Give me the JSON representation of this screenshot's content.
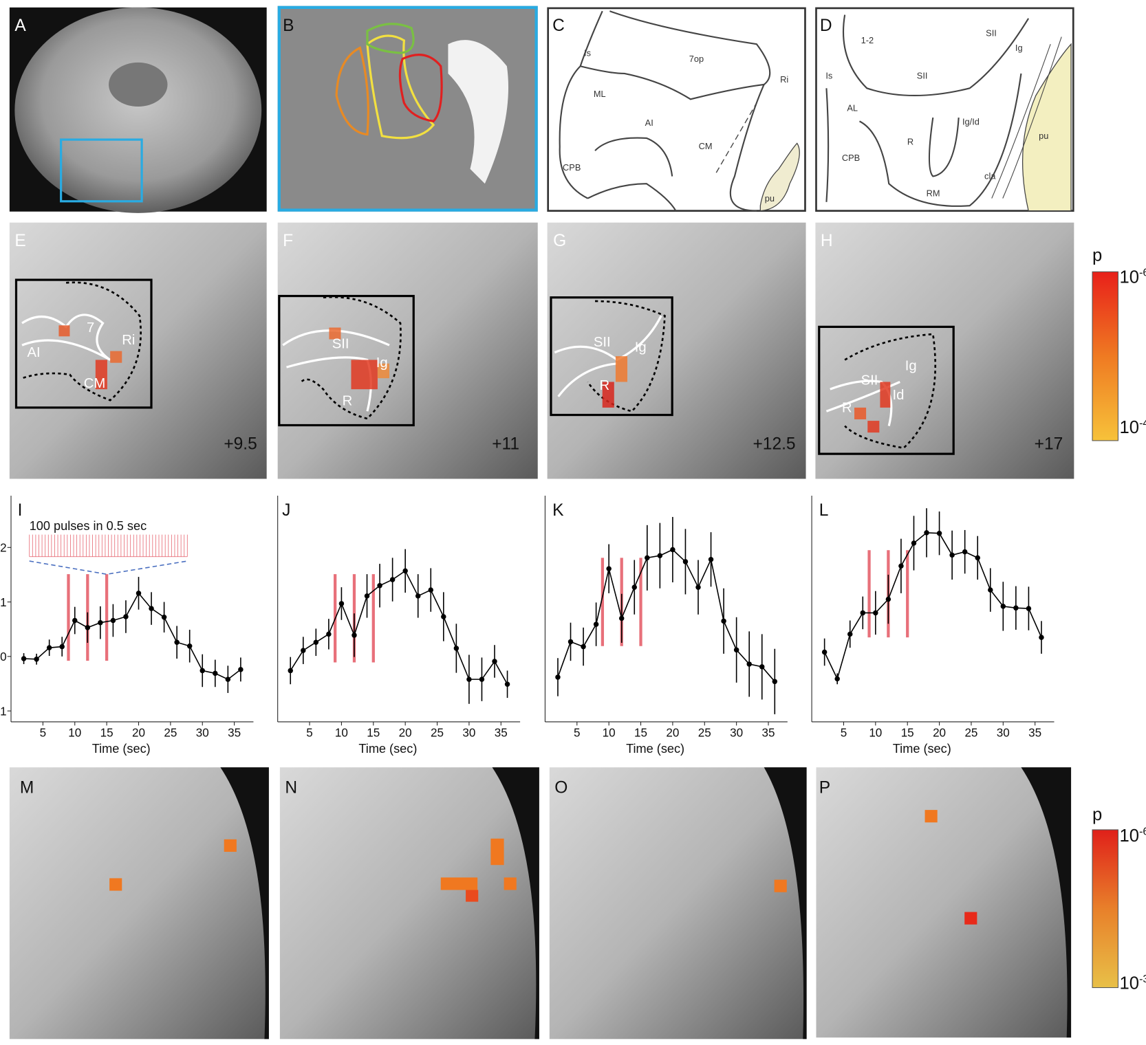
{
  "panel_letters": [
    "A",
    "B",
    "C",
    "D",
    "E",
    "F",
    "G",
    "H",
    "I",
    "J",
    "K",
    "L",
    "M",
    "N",
    "O",
    "P"
  ],
  "diagram_c": {
    "labels": [
      "Is",
      "7op",
      "Ri",
      "ML",
      "AI",
      "CM",
      "CPB",
      "pu"
    ]
  },
  "diagram_d": {
    "labels": [
      "1-2",
      "SII",
      "Ig",
      "Is",
      "SII",
      "AL",
      "Ig/Id",
      "R",
      "CPB",
      "RM",
      "cla",
      "pu"
    ]
  },
  "slices": [
    {
      "labels": [
        "7",
        "Ri",
        "AI",
        "CM"
      ],
      "position": "+9.5"
    },
    {
      "labels": [
        "SII",
        "Ig",
        "R"
      ],
      "position": "+11"
    },
    {
      "labels": [
        "SII",
        "Ig",
        "R"
      ],
      "position": "+12.5"
    },
    {
      "labels": [
        "SII",
        "Ig",
        "Id",
        "R"
      ],
      "position": "+17"
    }
  ],
  "colorbars": [
    {
      "label": "p",
      "top": {
        "base": "10",
        "exp": "-6"
      },
      "bottom": {
        "base": "10",
        "exp": "-4"
      }
    },
    {
      "label": "p",
      "top": {
        "base": "10",
        "exp": "-6"
      },
      "bottom": {
        "base": "10",
        "exp": "-3"
      }
    }
  ],
  "chart_data": [
    {
      "type": "line",
      "annotation": "100 pulses in 0.5 sec",
      "xlabel": "Time (sec)",
      "color": "#000000",
      "x": [
        2,
        4,
        6,
        8,
        10,
        12,
        14,
        16,
        18,
        20,
        22,
        24,
        26,
        28,
        30,
        32,
        34,
        36
      ],
      "values": [
        -0.04,
        -0.05,
        0.16,
        0.18,
        0.66,
        0.53,
        0.62,
        0.66,
        0.73,
        1.16,
        0.88,
        0.72,
        0.26,
        0.19,
        -0.26,
        -0.31,
        -0.42,
        -0.24
      ],
      "errors": [
        0.1,
        0.1,
        0.15,
        0.18,
        0.25,
        0.28,
        0.3,
        0.3,
        0.3,
        0.3,
        0.3,
        0.28,
        0.3,
        0.3,
        0.3,
        0.25,
        0.25,
        0.22
      ],
      "stimulus": {
        "color": "#e8707a",
        "times": [
          9,
          12,
          15
        ],
        "range": [
          -0.08,
          1.51
        ]
      },
      "xlim": [
        0,
        38
      ],
      "ylim": [
        -1.2,
        2.95
      ],
      "xticks": [
        5,
        10,
        15,
        20,
        25,
        30,
        35
      ],
      "yticks": [
        {
          "value": -1,
          "label": "1"
        },
        0,
        1,
        2
      ]
    },
    {
      "type": "line",
      "xlabel": "Time (sec)",
      "color": "#000000",
      "x": [
        2,
        4,
        6,
        8,
        10,
        12,
        14,
        16,
        18,
        20,
        22,
        24,
        26,
        28,
        30,
        32,
        34,
        36
      ],
      "values": [
        -0.26,
        0.11,
        0.26,
        0.41,
        0.97,
        0.39,
        1.11,
        1.3,
        1.41,
        1.57,
        1.11,
        1.22,
        0.73,
        0.15,
        -0.42,
        -0.42,
        -0.09,
        -0.51
      ],
      "errors": [
        0.25,
        0.25,
        0.25,
        0.28,
        0.3,
        0.4,
        0.4,
        0.4,
        0.4,
        0.4,
        0.4,
        0.4,
        0.45,
        0.45,
        0.45,
        0.4,
        0.3,
        0.25
      ],
      "stimulus": {
        "color": "#e8707a",
        "times": [
          9,
          12,
          15
        ],
        "range": [
          -0.11,
          1.51
        ]
      },
      "xlim": [
        0,
        38
      ],
      "ylim": [
        -1.2,
        2.95
      ],
      "xticks": [
        5,
        10,
        15,
        20,
        25,
        30,
        35
      ]
    },
    {
      "type": "line",
      "xlabel": "Time (sec)",
      "color": "#000000",
      "x": [
        2,
        4,
        6,
        8,
        10,
        12,
        14,
        16,
        18,
        20,
        22,
        24,
        26,
        28,
        30,
        32,
        34,
        36
      ],
      "values": [
        -0.38,
        0.27,
        0.18,
        0.59,
        1.61,
        0.7,
        1.27,
        1.81,
        1.85,
        1.96,
        1.74,
        1.27,
        1.78,
        0.65,
        0.12,
        -0.14,
        -0.19,
        -0.46
      ],
      "errors": [
        0.35,
        0.35,
        0.35,
        0.4,
        0.45,
        0.45,
        0.5,
        0.6,
        0.6,
        0.6,
        0.6,
        0.5,
        0.5,
        0.6,
        0.6,
        0.6,
        0.6,
        0.6
      ],
      "stimulus": {
        "color": "#e8707a",
        "times": [
          9,
          12,
          15
        ],
        "range": [
          0.19,
          1.81
        ]
      },
      "xlim": [
        0,
        38
      ],
      "ylim": [
        -1.2,
        2.95
      ],
      "xticks": [
        5,
        10,
        15,
        20,
        25,
        30,
        35
      ]
    },
    {
      "type": "line",
      "xlabel": "Time (sec)",
      "color": "#000000",
      "x": [
        2,
        4,
        6,
        8,
        10,
        12,
        14,
        16,
        18,
        20,
        22,
        24,
        26,
        28,
        30,
        32,
        34,
        36
      ],
      "values": [
        0.08,
        -0.41,
        0.41,
        0.8,
        0.8,
        1.05,
        1.66,
        2.08,
        2.27,
        2.26,
        1.86,
        1.92,
        1.81,
        1.22,
        0.92,
        0.89,
        0.88,
        0.35
      ],
      "errors": [
        0.25,
        0.1,
        0.25,
        0.3,
        0.4,
        0.45,
        0.5,
        0.5,
        0.45,
        0.4,
        0.45,
        0.4,
        0.4,
        0.4,
        0.45,
        0.4,
        0.4,
        0.3
      ],
      "stimulus": {
        "color": "#e8707a",
        "times": [
          9,
          12,
          15
        ],
        "range": [
          0.35,
          1.95
        ]
      },
      "xlim": [
        0,
        38
      ],
      "ylim": [
        -1.2,
        2.95
      ],
      "xticks": [
        5,
        10,
        15,
        20,
        25,
        30,
        35
      ]
    }
  ]
}
